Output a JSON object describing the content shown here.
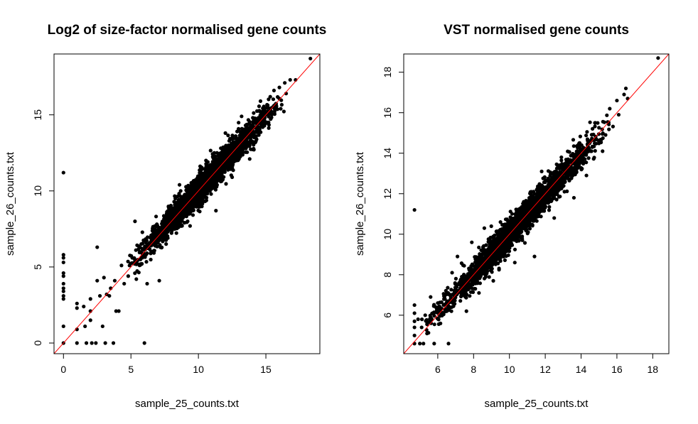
{
  "chart_data": [
    {
      "type": "scatter",
      "title": "Log2 of size-factor normalised gene counts",
      "xlabel": "sample_25_counts.txt",
      "ylabel": "sample_26_counts.txt",
      "xlim": [
        -0.7,
        19
      ],
      "ylim": [
        -0.7,
        19
      ],
      "xticks": [
        "0",
        "5",
        "10",
        "15"
      ],
      "yticks": [
        "0",
        "5",
        "10",
        "15"
      ],
      "xtick_values": [
        0,
        5,
        10,
        15
      ],
      "ytick_values": [
        0,
        5,
        10,
        15
      ],
      "point_color": "#000000",
      "reference_line": {
        "type": "identity",
        "color": "#ff0000"
      },
      "grid": false,
      "points": [
        [
          0,
          11.2
        ],
        [
          0,
          5.8
        ],
        [
          0,
          5.6
        ],
        [
          0,
          5.3
        ],
        [
          0,
          4.6
        ],
        [
          0,
          4.4
        ],
        [
          0,
          3.9
        ],
        [
          0,
          3.6
        ],
        [
          0,
          3.4
        ],
        [
          0,
          3.1
        ],
        [
          0,
          2.9
        ],
        [
          0,
          1.1
        ],
        [
          0,
          0
        ],
        [
          1,
          2.6
        ],
        [
          1,
          2.3
        ],
        [
          1,
          0.9
        ],
        [
          1,
          0
        ],
        [
          1.5,
          2.4
        ],
        [
          1.6,
          1.1
        ],
        [
          1.7,
          0
        ],
        [
          2,
          2.9
        ],
        [
          2,
          2.1
        ],
        [
          2,
          1.5
        ],
        [
          2.1,
          0
        ],
        [
          2.4,
          0
        ],
        [
          2.5,
          6.3
        ],
        [
          2.5,
          4.1
        ],
        [
          2.7,
          3.1
        ],
        [
          2.9,
          1.1
        ],
        [
          3,
          4.3
        ],
        [
          3.1,
          0
        ],
        [
          3.2,
          3.2
        ],
        [
          3.4,
          3.1
        ],
        [
          3.5,
          3.6
        ],
        [
          3.7,
          0
        ],
        [
          3.8,
          4.1
        ],
        [
          3.9,
          2.1
        ],
        [
          4.1,
          2.1
        ],
        [
          4.3,
          5.1
        ],
        [
          4.5,
          3.9
        ],
        [
          4.8,
          4.4
        ],
        [
          5.1,
          5.6
        ],
        [
          5.3,
          8.0
        ],
        [
          5.4,
          4.2
        ],
        [
          5.8,
          5.2
        ],
        [
          6.0,
          0
        ],
        [
          6.2,
          3.9
        ],
        [
          6.5,
          6.4
        ],
        [
          7.1,
          4.1
        ],
        [
          7.8,
          8.9
        ],
        [
          8.6,
          10.4
        ],
        [
          9.2,
          8.0
        ],
        [
          10.7,
          11.9
        ],
        [
          11.3,
          8.7
        ],
        [
          12.0,
          13.8
        ],
        [
          12.5,
          10.9
        ],
        [
          13.2,
          14.9
        ],
        [
          13.8,
          12.1
        ],
        [
          14.2,
          13.6
        ],
        [
          14.6,
          15.9
        ],
        [
          15.2,
          14.5
        ],
        [
          15.6,
          16.6
        ],
        [
          16.0,
          16.8
        ],
        [
          16.1,
          15.4
        ],
        [
          16.4,
          17.1
        ],
        [
          16.5,
          16.4
        ],
        [
          16.8,
          17.3
        ],
        [
          17.2,
          17.3
        ],
        [
          18.3,
          18.7
        ]
      ],
      "cloud": {
        "x_range": [
          5.5,
          15.5
        ],
        "sd": 0.45
      }
    },
    {
      "type": "scatter",
      "title": "VST normalised gene counts",
      "xlabel": "sample_25_counts.txt",
      "ylabel": "sample_26_counts.txt",
      "xlim": [
        4.1,
        18.9
      ],
      "ylim": [
        4.1,
        18.9
      ],
      "xticks": [
        "6",
        "8",
        "10",
        "12",
        "14",
        "16",
        "18"
      ],
      "yticks": [
        "6",
        "8",
        "10",
        "12",
        "14",
        "16",
        "18"
      ],
      "xtick_values": [
        6,
        8,
        10,
        12,
        14,
        16,
        18
      ],
      "ytick_values": [
        6,
        8,
        10,
        12,
        14,
        16,
        18
      ],
      "point_color": "#000000",
      "reference_line": {
        "type": "identity",
        "color": "#ff0000"
      },
      "grid": false,
      "points": [
        [
          4.7,
          11.2
        ],
        [
          4.7,
          6.5
        ],
        [
          4.7,
          6.1
        ],
        [
          4.7,
          5.7
        ],
        [
          4.7,
          5.4
        ],
        [
          4.7,
          5.0
        ],
        [
          4.7,
          4.6
        ],
        [
          4.9,
          5.8
        ],
        [
          5.0,
          4.6
        ],
        [
          5.1,
          5.4
        ],
        [
          5.2,
          4.6
        ],
        [
          5.3,
          6.0
        ],
        [
          5.4,
          5.1
        ],
        [
          5.6,
          6.9
        ],
        [
          5.8,
          4.6
        ],
        [
          6.0,
          6.6
        ],
        [
          6.4,
          6.8
        ],
        [
          6.6,
          4.6
        ],
        [
          6.8,
          8.1
        ],
        [
          7.1,
          8.9
        ],
        [
          7.6,
          6.2
        ],
        [
          7.9,
          9.6
        ],
        [
          8.3,
          7.1
        ],
        [
          8.6,
          10.3
        ],
        [
          9.1,
          7.7
        ],
        [
          9.5,
          10.6
        ],
        [
          10.3,
          8.6
        ],
        [
          10.8,
          11.6
        ],
        [
          11.4,
          8.9
        ],
        [
          11.8,
          13.1
        ],
        [
          12.5,
          10.8
        ],
        [
          12.9,
          13.8
        ],
        [
          13.6,
          11.8
        ],
        [
          13.9,
          14.5
        ],
        [
          14.3,
          12.9
        ],
        [
          14.8,
          15.5
        ],
        [
          15.2,
          14.1
        ],
        [
          15.6,
          16.2
        ],
        [
          16.0,
          16.6
        ],
        [
          16.1,
          15.9
        ],
        [
          16.4,
          16.9
        ],
        [
          16.5,
          17.2
        ],
        [
          16.6,
          16.7
        ],
        [
          18.3,
          18.7
        ]
      ],
      "cloud": {
        "x_range": [
          6.0,
          15.0
        ],
        "sd": 0.35
      }
    }
  ]
}
